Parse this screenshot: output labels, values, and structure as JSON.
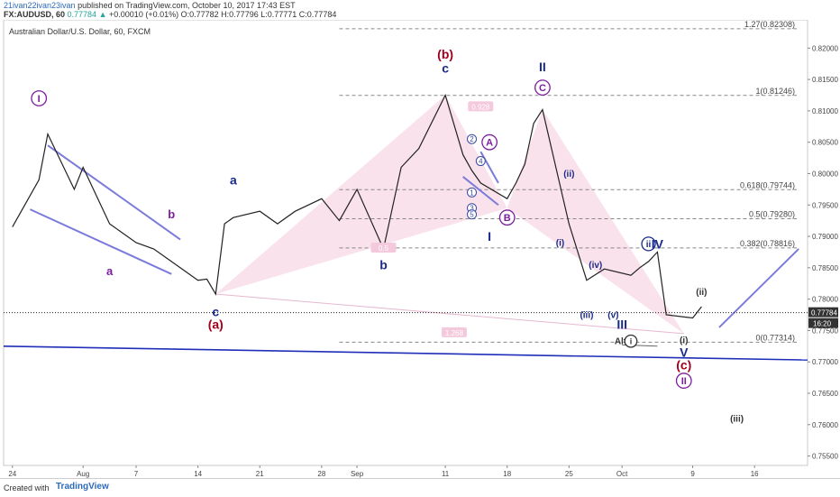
{
  "header": {
    "user": "21ivan22ivan23ivan",
    "published": "published on TradingView.com, October 10, 2017 17:43 EST",
    "symbol": "FX:AUDUSD, 60",
    "last": "0.77784",
    "change": "+0.00010 (+0.01%)",
    "open": "O:0.77782",
    "high": "H:0.77796",
    "low": "L:0.77771",
    "close": "C:0.77784"
  },
  "footer": {
    "created": "Created with",
    "brand": "TradingView"
  },
  "colors": {
    "price": "#222222",
    "fib": "#888888",
    "pattern": "#f6d5e4",
    "wave_red": "#a0001c",
    "wave_purple": "#7a1e9c",
    "wave_blue": "#1a2a8a",
    "channel": "#7b7bdc",
    "trend": "#1f2fb8"
  },
  "chart_data": {
    "type": "line",
    "title": "Australian Dollar/U.S. Dollar, 60, FXCM",
    "ylim": [
      0.7535,
      0.8245
    ],
    "y_ticks": [
      "0.82000",
      "0.81500",
      "0.81000",
      "0.80500",
      "0.80000",
      "0.79500",
      "0.79000",
      "0.78500",
      "0.78000",
      "0.77500",
      "0.77000",
      "0.76500",
      "0.76000",
      "0.75500"
    ],
    "x_ticks": [
      "24",
      "Aug",
      "7",
      "14",
      "21",
      "28",
      "Sep",
      "11",
      "18",
      "25",
      "Oct",
      "9",
      "16"
    ],
    "last_price": "0.77784",
    "last_time": "16:20",
    "series": [
      {
        "x": [
          "2017-07-24",
          "2017-07-27",
          "2017-07-28",
          "2017-07-31",
          "2017-08-01",
          "2017-08-03",
          "2017-08-04",
          "2017-08-07",
          "2017-08-09",
          "2017-08-11",
          "2017-08-14",
          "2017-08-15",
          "2017-08-16",
          "2017-08-17",
          "2017-08-18",
          "2017-08-21",
          "2017-08-23",
          "2017-08-25",
          "2017-08-28",
          "2017-08-30",
          "2017-09-01",
          "2017-09-04",
          "2017-09-06",
          "2017-09-08",
          "2017-09-11",
          "2017-09-13",
          "2017-09-14",
          "2017-09-15",
          "2017-09-18",
          "2017-09-19",
          "2017-09-20",
          "2017-09-21",
          "2017-09-22",
          "2017-09-25",
          "2017-09-27",
          "2017-09-29",
          "2017-10-02",
          "2017-10-03",
          "2017-10-04",
          "2017-10-05",
          "2017-10-06",
          "2017-10-09",
          "2017-10-10"
        ],
        "y": [
          0.7915,
          0.799,
          0.8063,
          0.7975,
          0.801,
          0.795,
          0.792,
          0.789,
          0.788,
          0.786,
          0.783,
          0.7832,
          0.7808,
          0.792,
          0.793,
          0.794,
          0.792,
          0.794,
          0.796,
          0.7925,
          0.7975,
          0.788,
          0.801,
          0.804,
          0.8125,
          0.803,
          0.8005,
          0.7985,
          0.796,
          0.7985,
          0.8015,
          0.808,
          0.8102,
          0.792,
          0.783,
          0.7848,
          0.7838,
          0.785,
          0.786,
          0.7875,
          0.7775,
          0.777,
          0.7788
        ]
      }
    ],
    "fib_levels": [
      {
        "label": "1.27(0.82308)",
        "value": 0.82308
      },
      {
        "label": "1(0.81246)",
        "value": 0.81246
      },
      {
        "label": "0.618(0.79744)",
        "value": 0.79744
      },
      {
        "label": "0.5(0.79280)",
        "value": 0.7928
      },
      {
        "label": "0.382(0.78816)",
        "value": 0.78816
      },
      {
        "label": "0(0.77314)",
        "value": 0.77314
      }
    ],
    "wave_labels": [
      {
        "text": "I",
        "x": "2017-07-27",
        "y": 0.812,
        "style": "circle-purple"
      },
      {
        "text": "a",
        "x": "2017-08-04",
        "y": 0.7845,
        "style": "purple"
      },
      {
        "text": "b",
        "x": "2017-08-11",
        "y": 0.7935,
        "style": "purple"
      },
      {
        "text": "a",
        "x": "2017-08-18",
        "y": 0.799,
        "style": "navy"
      },
      {
        "text": "c",
        "x": "2017-08-16",
        "y": 0.778,
        "style": "navy"
      },
      {
        "text": "(a)",
        "x": "2017-08-16",
        "y": 0.776,
        "style": "red"
      },
      {
        "text": "b",
        "x": "2017-09-04",
        "y": 0.7855,
        "style": "navy"
      },
      {
        "text": "(b)",
        "x": "2017-09-11",
        "y": 0.819,
        "style": "red"
      },
      {
        "text": "c",
        "x": "2017-09-11",
        "y": 0.8168,
        "style": "navy"
      },
      {
        "text": "I",
        "x": "2017-09-16",
        "y": 0.79,
        "style": "navy"
      },
      {
        "text": "A",
        "x": "2017-09-16",
        "y": 0.805,
        "style": "circle-purple"
      },
      {
        "text": "B",
        "x": "2017-09-18",
        "y": 0.793,
        "style": "circle-purple"
      },
      {
        "text": "II",
        "x": "2017-09-22",
        "y": 0.817,
        "style": "navy"
      },
      {
        "text": "C",
        "x": "2017-09-22",
        "y": 0.8137,
        "style": "circle-purple"
      },
      {
        "text": "(ii)",
        "x": "2017-09-25",
        "y": 0.8,
        "style": "navy-small"
      },
      {
        "text": "(i)",
        "x": "2017-09-24",
        "y": 0.789,
        "style": "navy-small"
      },
      {
        "text": "(iv)",
        "x": "2017-09-28",
        "y": 0.7855,
        "style": "navy-small"
      },
      {
        "text": "(iii)",
        "x": "2017-09-27",
        "y": 0.7775,
        "style": "navy-small"
      },
      {
        "text": "(v)",
        "x": "2017-09-30",
        "y": 0.7775,
        "style": "navy-small"
      },
      {
        "text": "III",
        "x": "2017-10-01",
        "y": 0.776,
        "style": "navy"
      },
      {
        "text": "ii",
        "x": "2017-10-04",
        "y": 0.7888,
        "style": "circle-navy"
      },
      {
        "text": "IV",
        "x": "2017-10-05",
        "y": 0.7888,
        "style": "navy"
      },
      {
        "text": "(ii)",
        "x": "2017-10-10",
        "y": 0.7812,
        "style": "dark-small"
      },
      {
        "text": "(i)",
        "x": "2017-10-08",
        "y": 0.7735,
        "style": "dark-small"
      },
      {
        "text": "V",
        "x": "2017-10-08",
        "y": 0.7715,
        "style": "navy"
      },
      {
        "text": "(c)",
        "x": "2017-10-08",
        "y": 0.7695,
        "style": "red"
      },
      {
        "text": "II",
        "x": "2017-10-08",
        "y": 0.767,
        "style": "circle-purple"
      },
      {
        "text": "(iii)",
        "x": "2017-10-14",
        "y": 0.761,
        "style": "dark-small"
      },
      {
        "text": "Alt:",
        "x": "2017-10-01",
        "y": 0.7733,
        "style": "dark-small"
      },
      {
        "text": "i",
        "x": "2017-10-02",
        "y": 0.7733,
        "style": "circle-dark"
      }
    ],
    "numbered_points": [
      {
        "text": "1",
        "x": "2017-09-14",
        "y": 0.797
      },
      {
        "text": "2",
        "x": "2017-09-14",
        "y": 0.8055
      },
      {
        "text": "3",
        "x": "2017-09-14",
        "y": 0.7945
      },
      {
        "text": "4",
        "x": "2017-09-15",
        "y": 0.802
      },
      {
        "text": "5",
        "x": "2017-09-14",
        "y": 0.7935
      }
    ],
    "ratio_tags": [
      {
        "text": "0.5",
        "x": "2017-09-04",
        "y": 0.788
      },
      {
        "text": "0.928",
        "x": "2017-09-15",
        "y": 0.8105
      },
      {
        "text": "1.268",
        "x": "2017-09-12",
        "y": 0.7745
      }
    ]
  }
}
